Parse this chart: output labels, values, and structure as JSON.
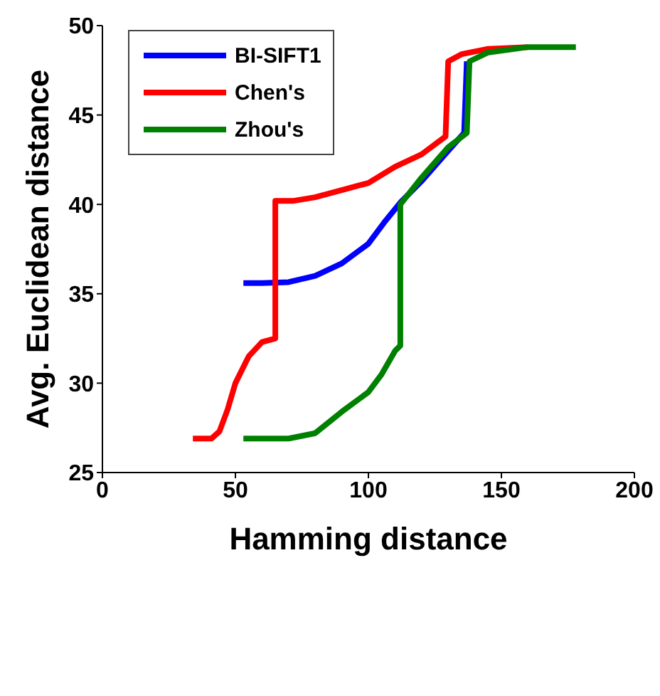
{
  "chart_data": {
    "type": "line",
    "xlabel": "Hamming distance",
    "ylabel": "Avg. Euclidean distance",
    "xlim": [
      0,
      200
    ],
    "xticks": [
      0,
      50,
      100,
      150,
      200
    ],
    "ylim": [
      25,
      50
    ],
    "yticks": [
      25,
      30,
      35,
      40,
      45,
      50
    ],
    "grid": false,
    "legend": "top left",
    "marker": "none",
    "line_style": "solid",
    "series": [
      {
        "name": "BI-SIFT1",
        "color": "#0000ff",
        "x": [
          53,
          60,
          70,
          80,
          90,
          100,
          106,
          112,
          120,
          130,
          136,
          137
        ],
        "values": [
          35.6,
          35.6,
          35.65,
          36.0,
          36.7,
          37.8,
          39.0,
          40.1,
          41.3,
          43.0,
          44.0,
          48.0
        ]
      },
      {
        "name": "Chen's",
        "color": "#ff0000",
        "x": [
          34,
          41,
          44,
          47,
          50,
          55,
          60,
          65,
          65,
          72,
          80,
          90,
          100,
          110,
          120,
          129,
          130,
          135,
          145,
          160
        ],
        "values": [
          26.9,
          26.9,
          27.3,
          28.5,
          30.0,
          31.5,
          32.3,
          32.5,
          40.2,
          40.2,
          40.4,
          40.8,
          41.2,
          42.1,
          42.8,
          43.8,
          48.0,
          48.4,
          48.7,
          48.8
        ]
      },
      {
        "name": "Zhou's",
        "color": "#008000",
        "x": [
          53,
          70,
          80,
          90,
          100,
          105,
          110,
          112,
          112,
          120,
          130,
          137,
          138,
          145,
          160,
          178
        ],
        "values": [
          26.9,
          26.9,
          27.2,
          28.4,
          29.5,
          30.5,
          31.8,
          32.1,
          40.0,
          41.5,
          43.2,
          44.0,
          48.0,
          48.5,
          48.8,
          48.8
        ]
      }
    ]
  }
}
